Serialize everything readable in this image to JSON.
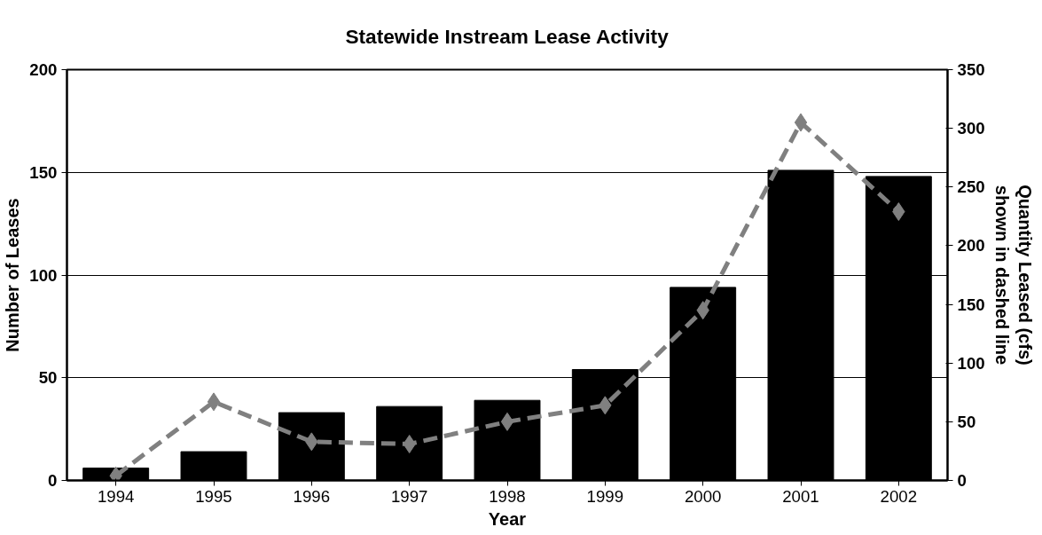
{
  "chart_data": {
    "type": "bar",
    "title": "Statewide Instream Lease Activity",
    "xlabel": "Year",
    "ylabel": "Number of Leases",
    "y2label": "Quantity Leased (cfs)\nshown in dashed line",
    "categories": [
      "1994",
      "1995",
      "1996",
      "1997",
      "1998",
      "1999",
      "2000",
      "2001",
      "2002"
    ],
    "series": [
      {
        "color": "#000000",
        "values": [
          6,
          14,
          33,
          36,
          39,
          54,
          94,
          151,
          148
        ]
      },
      {
        "type": "line",
        "axis": "y2",
        "color": "#808080",
        "marker": "diamond",
        "line_style": "dashed",
        "values": [
          4,
          67,
          33,
          31,
          50,
          64,
          145,
          305,
          229
        ]
      }
    ],
    "ylim": [
      0,
      200
    ],
    "yticks": [
      0,
      50,
      100,
      150,
      200
    ],
    "y2lim": [
      0,
      350
    ],
    "y2ticks": [
      0,
      50,
      100,
      150,
      200,
      250,
      300,
      350
    ],
    "grid": "y"
  }
}
